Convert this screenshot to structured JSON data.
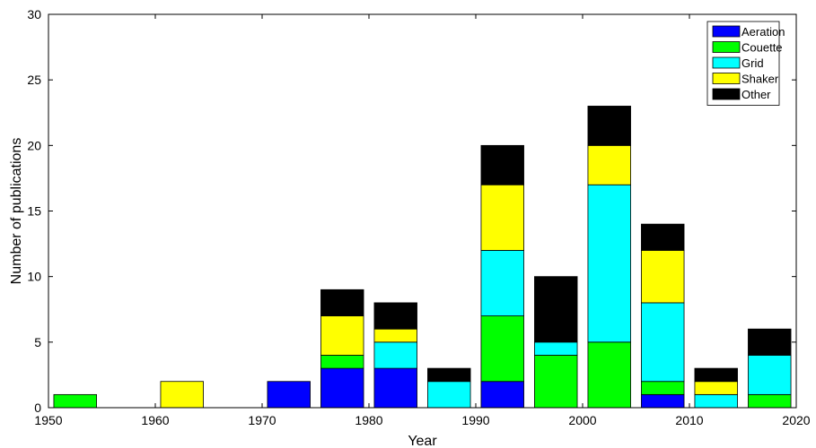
{
  "chart_data": {
    "type": "bar",
    "stacked": true,
    "title": "",
    "xlabel": "Year",
    "ylabel": "Number of publications",
    "xlim": [
      1950,
      2020
    ],
    "ylim": [
      0,
      30
    ],
    "x_ticks": [
      "1950",
      "1960",
      "1970",
      "1980",
      "1990",
      "2000",
      "2010",
      "2020"
    ],
    "y_ticks": [
      "0",
      "5",
      "10",
      "15",
      "20",
      "25",
      "30"
    ],
    "bar_centers": [
      1952.5,
      1962.5,
      1972.5,
      1977.5,
      1982.5,
      1987.5,
      1992.5,
      1997.5,
      2002.5,
      2007.5,
      2012.5,
      2017.5
    ],
    "bar_width_years": 4,
    "grid": false,
    "legend_position": "top-right",
    "series": [
      {
        "name": "Aeration",
        "color": "#0000ff",
        "values": [
          0,
          0,
          2,
          3,
          3,
          0,
          2,
          0,
          0,
          1,
          0,
          0
        ]
      },
      {
        "name": "Couette",
        "color": "#00ff00",
        "values": [
          1,
          0,
          0,
          1,
          0,
          0,
          5,
          4,
          5,
          1,
          0,
          1
        ]
      },
      {
        "name": "Grid",
        "color": "#00ffff",
        "values": [
          0,
          0,
          0,
          0,
          2,
          2,
          5,
          1,
          12,
          6,
          1,
          3
        ]
      },
      {
        "name": "Shaker",
        "color": "#ffff00",
        "values": [
          0,
          2,
          0,
          3,
          1,
          0,
          5,
          0,
          3,
          4,
          1,
          0
        ]
      },
      {
        "name": "Other",
        "color": "#000000",
        "values": [
          0,
          0,
          0,
          2,
          2,
          1,
          3,
          5,
          3,
          2,
          1,
          2
        ]
      }
    ]
  }
}
